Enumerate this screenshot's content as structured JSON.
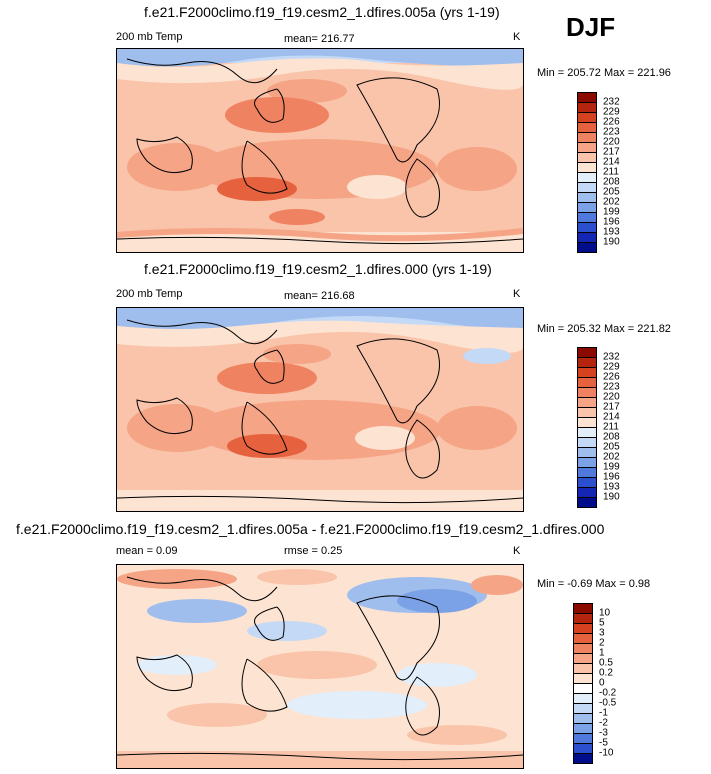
{
  "season": "DJF",
  "panels": [
    {
      "title": "f.e21.F2000climo.f19_f19.cesm2_1.dfires.005a (yrs 1-19)",
      "left_label": "200 mb Temp",
      "center_label": "mean= 216.77",
      "right_label": "K",
      "minmax": "Min = 205.72 Max = 221.96"
    },
    {
      "title": "f.e21.F2000climo.f19_f19.cesm2_1.dfires.000 (yrs 1-19)",
      "left_label": "200 mb Temp",
      "center_label": "mean= 216.68",
      "right_label": "K",
      "minmax": "Min = 205.32 Max = 221.82"
    },
    {
      "title": "f.e21.F2000climo.f19_f19.cesm2_1.dfires.005a - f.e21.F2000climo.f19_f19.cesm2_1.dfires.000",
      "left_label": "mean =   0.09",
      "center_label": "rmse =   0.25",
      "right_label": "K",
      "minmax": "Min =  -0.69 Max =   0.98"
    }
  ],
  "colorbar_abs": {
    "labels": [
      "232",
      "229",
      "226",
      "223",
      "220",
      "217",
      "214",
      "211",
      "208",
      "205",
      "202",
      "199",
      "196",
      "193",
      "190"
    ],
    "colors": [
      "#8b0a00",
      "#b5240f",
      "#d6421f",
      "#e6623f",
      "#ef8260",
      "#f5a485",
      "#f9c4aa",
      "#fde3d2",
      "#e2eefa",
      "#c4d9f5",
      "#9fbeee",
      "#7ba1e6",
      "#4f79dc",
      "#2b4fcf",
      "#1427b4",
      "#000d8a"
    ]
  },
  "colorbar_diff": {
    "labels": [
      "10",
      "5",
      "3",
      "2",
      "1",
      "0.5",
      "0.2",
      "0",
      "-0.2",
      "-0.5",
      "-1",
      "-2",
      "-3",
      "-5",
      "-10"
    ],
    "colors": [
      "#8b0a00",
      "#b5240f",
      "#d6421f",
      "#e6623f",
      "#ef8260",
      "#f5a485",
      "#f9c4aa",
      "#fde3d2",
      "#ffffff",
      "#e2eefa",
      "#c4d9f5",
      "#9fbeee",
      "#7ba1e6",
      "#4f79dc",
      "#2b4fcf",
      "#000d8a"
    ]
  }
}
